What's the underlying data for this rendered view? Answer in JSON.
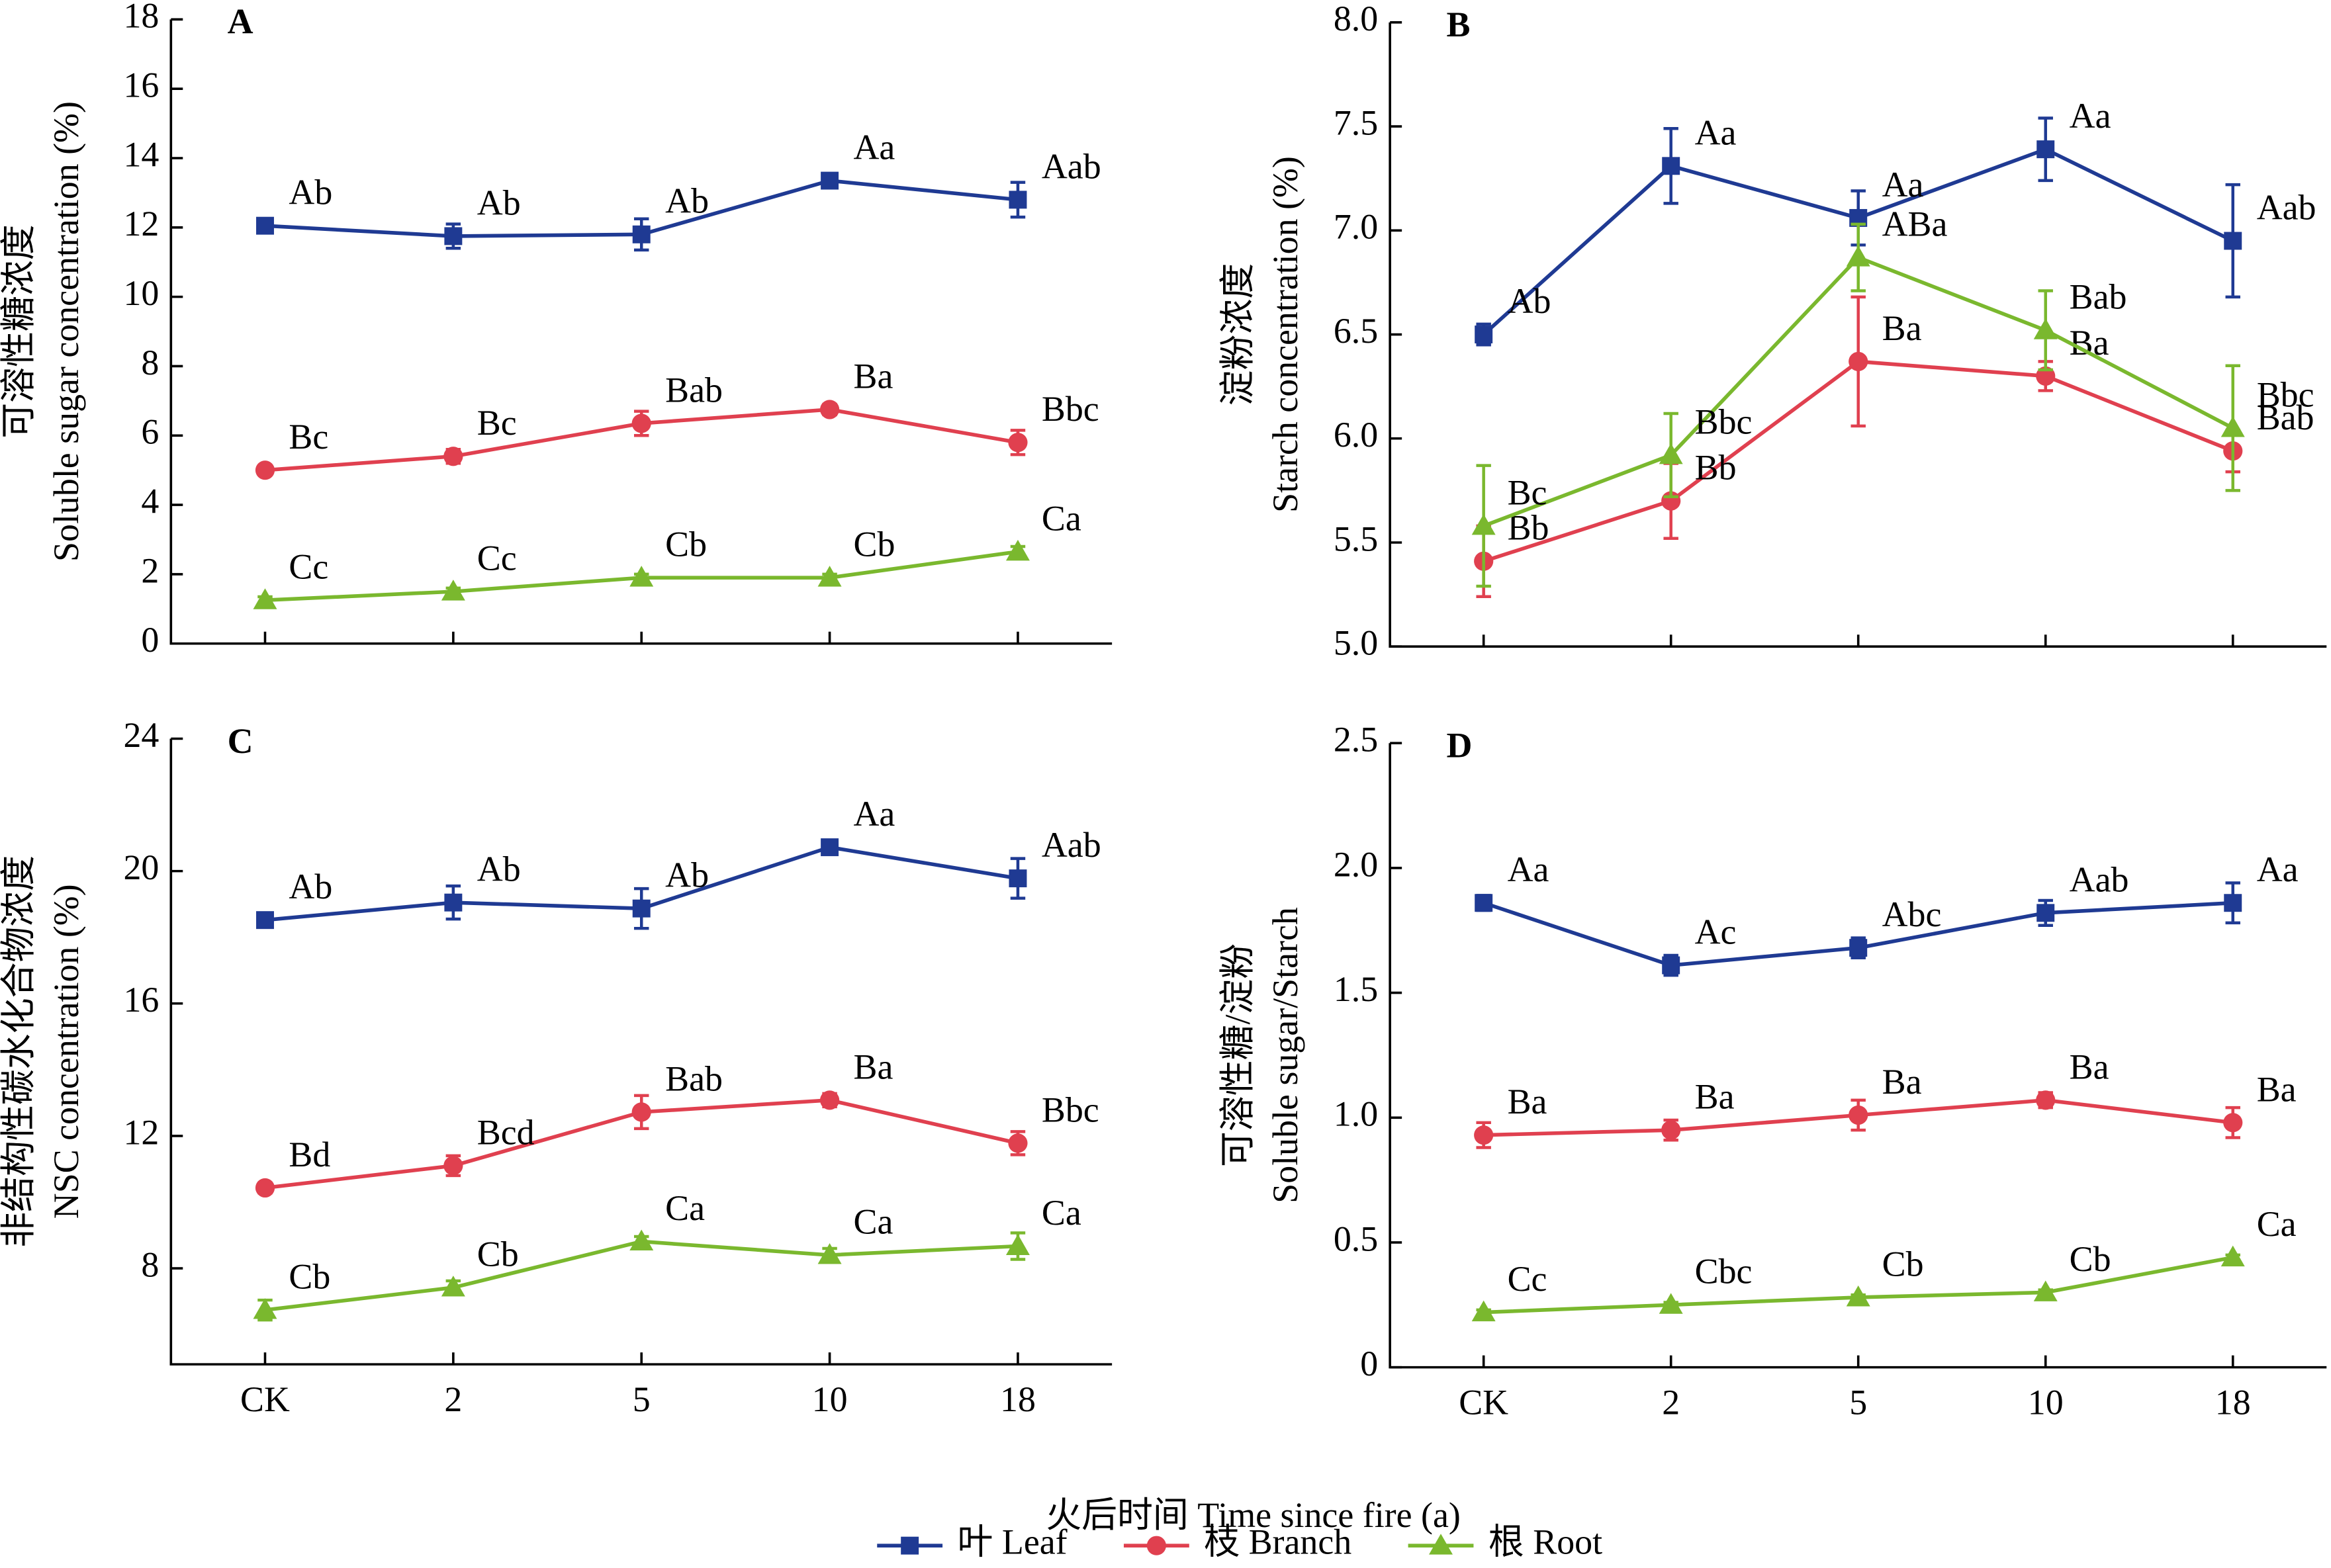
{
  "chart_data": [
    {
      "type": "line",
      "title": "A",
      "ylabel": [
        "可溶性糖浓度",
        "Soluble sugar concentration (%)"
      ],
      "categories": [
        "CK",
        "2",
        "5",
        "10",
        "18"
      ],
      "show_xticklabels": false,
      "ylim": [
        0,
        18
      ],
      "yticks": [
        0,
        2,
        4,
        6,
        8,
        10,
        12,
        14,
        16,
        18
      ],
      "series": [
        {
          "name": "叶 Leaf",
          "color": "#1f3a93",
          "marker": "square",
          "values": [
            12.05,
            11.75,
            11.8,
            13.35,
            12.8
          ],
          "errors": [
            0.2,
            0.35,
            0.45,
            0.2,
            0.5
          ],
          "letters": [
            "Ab",
            "Ab",
            "Ab",
            "Aa",
            "Aab"
          ]
        },
        {
          "name": "枝 Branch",
          "color": "#e0404f",
          "marker": "circle",
          "values": [
            5.0,
            5.4,
            6.35,
            6.75,
            5.8
          ],
          "errors": [
            0.1,
            0.2,
            0.35,
            0.15,
            0.35
          ],
          "letters": [
            "Bc",
            "Bc",
            "Bab",
            "Ba",
            "Bbc"
          ]
        },
        {
          "name": "根 Root",
          "color": "#7ab82e",
          "marker": "triangle",
          "values": [
            1.25,
            1.5,
            1.9,
            1.9,
            2.65
          ],
          "errors": [
            0.1,
            0.1,
            0.1,
            0.1,
            0.15
          ],
          "letters": [
            "Cc",
            "Cc",
            "Cb",
            "Cb",
            "Ca"
          ]
        }
      ]
    },
    {
      "type": "line",
      "title": "B",
      "ylabel": [
        "淀粉浓度",
        "Starch concentration (%)"
      ],
      "categories": [
        "CK",
        "2",
        "5",
        "10",
        "18"
      ],
      "show_xticklabels": false,
      "ylim": [
        5,
        8
      ],
      "yticks": [
        {
          "value": 5,
          "label": "5.0"
        },
        5.5,
        {
          "value": 6,
          "label": "6.0"
        },
        6.5,
        {
          "value": 7,
          "label": "7.0"
        },
        7.5,
        {
          "value": 8,
          "label": "8.0"
        }
      ],
      "series": [
        {
          "name": "叶 Leaf",
          "color": "#1f3a93",
          "marker": "square",
          "values": [
            6.5,
            7.31,
            7.06,
            7.39,
            6.95
          ],
          "errors": [
            0.05,
            0.18,
            0.13,
            0.15,
            0.27
          ],
          "letters": [
            "Ab",
            "Aa",
            "Aa",
            "Aa",
            "Aab"
          ]
        },
        {
          "name": "枝 Branch",
          "color": "#e0404f",
          "marker": "circle",
          "values": [
            5.41,
            5.7,
            6.37,
            6.3,
            5.94
          ],
          "errors": [
            0.17,
            0.18,
            0.31,
            0.07,
            0.1
          ],
          "letters": [
            "Bb",
            "Bb",
            "Ba",
            "Ba",
            "Bab"
          ]
        },
        {
          "name": "根 Root",
          "color": "#7ab82e",
          "marker": "triangle",
          "values": [
            5.58,
            5.92,
            6.87,
            6.52,
            6.05
          ],
          "errors": [
            0.29,
            0.2,
            0.16,
            0.19,
            0.3
          ],
          "letters": [
            "Bc",
            "Bbc",
            "ABa",
            "Bab",
            "Bbc"
          ]
        }
      ]
    },
    {
      "type": "line",
      "title": "C",
      "ylabel": [
        "非结构性碳水化合物浓度",
        "NSC concentration (%)"
      ],
      "categories": [
        "CK",
        "2",
        "5",
        "10",
        "18"
      ],
      "show_xticklabels": true,
      "ylim": [
        5.1,
        24
      ],
      "yticks": [
        8,
        12,
        16,
        20,
        24
      ],
      "series": [
        {
          "name": "叶 Leaf",
          "color": "#1f3a93",
          "marker": "square",
          "values": [
            18.52,
            19.05,
            18.87,
            20.72,
            19.78
          ],
          "errors": [
            0.2,
            0.5,
            0.6,
            0.2,
            0.6
          ],
          "letters": [
            "Ab",
            "Ab",
            "Ab",
            "Aa",
            "Aab"
          ]
        },
        {
          "name": "枝 Branch",
          "color": "#e0404f",
          "marker": "circle",
          "values": [
            10.43,
            11.1,
            12.72,
            13.08,
            11.78
          ],
          "errors": [
            0.15,
            0.3,
            0.5,
            0.2,
            0.35
          ],
          "letters": [
            "Bd",
            "Bcd",
            "Bab",
            "Ba",
            "Bbc"
          ]
        },
        {
          "name": "根 Root",
          "color": "#7ab82e",
          "marker": "triangle",
          "values": [
            6.74,
            7.42,
            8.81,
            8.4,
            8.67
          ],
          "errors": [
            0.3,
            0.2,
            0.15,
            0.2,
            0.4
          ],
          "letters": [
            "Cb",
            "Cb",
            "Ca",
            "Ca",
            "Ca"
          ]
        }
      ]
    },
    {
      "type": "line",
      "title": "D",
      "ylabel": [
        "可溶性糖/淀粉",
        "Soluble sugar/Starch"
      ],
      "categories": [
        "CK",
        "2",
        "5",
        "10",
        "18"
      ],
      "show_xticklabels": true,
      "ylim": [
        0,
        2.5
      ],
      "yticks": [
        0,
        0.5,
        {
          "value": 1,
          "label": "1.0"
        },
        1.5,
        {
          "value": 2,
          "label": "2.0"
        },
        2.5
      ],
      "series": [
        {
          "name": "叶 Leaf",
          "color": "#1f3a93",
          "marker": "square",
          "values": [
            1.86,
            1.61,
            1.68,
            1.82,
            1.86
          ],
          "errors": [
            0.03,
            0.04,
            0.04,
            0.05,
            0.08
          ],
          "letters": [
            "Aa",
            "Ac",
            "Abc",
            "Aab",
            "Aa"
          ]
        },
        {
          "name": "枝 Branch",
          "color": "#e0404f",
          "marker": "circle",
          "values": [
            0.93,
            0.95,
            1.01,
            1.07,
            0.98
          ],
          "errors": [
            0.05,
            0.04,
            0.06,
            0.03,
            0.06
          ],
          "letters": [
            "Ba",
            "Ba",
            "Ba",
            "Ba",
            "Ba"
          ]
        },
        {
          "name": "根 Root",
          "color": "#7ab82e",
          "marker": "triangle",
          "values": [
            0.22,
            0.25,
            0.28,
            0.3,
            0.44
          ],
          "errors": [
            0.01,
            0.01,
            0.01,
            0.01,
            0.01
          ],
          "letters": [
            "Cc",
            "Cbc",
            "Cb",
            "Cb",
            "Ca"
          ]
        }
      ]
    }
  ],
  "xlabel": "火后时间 Time since fire (a)"
}
